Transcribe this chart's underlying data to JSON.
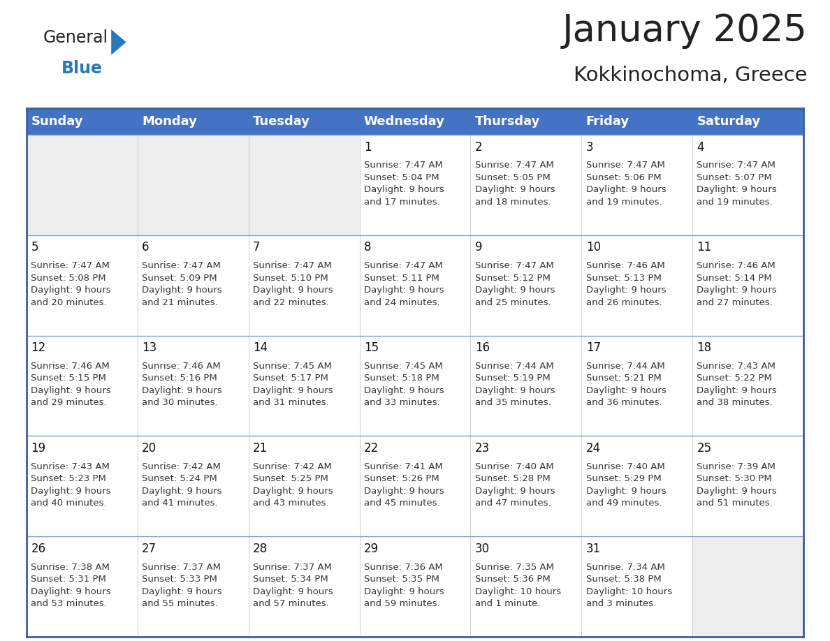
{
  "title": "January 2025",
  "subtitle": "Kokkinochoma, Greece",
  "header_bg": "#4472C4",
  "header_text_color": "#FFFFFF",
  "cell_bg_light": "#EEEEEE",
  "cell_bg_white": "#FFFFFF",
  "day_names": [
    "Sunday",
    "Monday",
    "Tuesday",
    "Wednesday",
    "Thursday",
    "Friday",
    "Saturday"
  ],
  "weeks": [
    [
      {
        "day": "",
        "info": ""
      },
      {
        "day": "",
        "info": ""
      },
      {
        "day": "",
        "info": ""
      },
      {
        "day": "1",
        "info": "Sunrise: 7:47 AM\nSunset: 5:04 PM\nDaylight: 9 hours\nand 17 minutes."
      },
      {
        "day": "2",
        "info": "Sunrise: 7:47 AM\nSunset: 5:05 PM\nDaylight: 9 hours\nand 18 minutes."
      },
      {
        "day": "3",
        "info": "Sunrise: 7:47 AM\nSunset: 5:06 PM\nDaylight: 9 hours\nand 19 minutes."
      },
      {
        "day": "4",
        "info": "Sunrise: 7:47 AM\nSunset: 5:07 PM\nDaylight: 9 hours\nand 19 minutes."
      }
    ],
    [
      {
        "day": "5",
        "info": "Sunrise: 7:47 AM\nSunset: 5:08 PM\nDaylight: 9 hours\nand 20 minutes."
      },
      {
        "day": "6",
        "info": "Sunrise: 7:47 AM\nSunset: 5:09 PM\nDaylight: 9 hours\nand 21 minutes."
      },
      {
        "day": "7",
        "info": "Sunrise: 7:47 AM\nSunset: 5:10 PM\nDaylight: 9 hours\nand 22 minutes."
      },
      {
        "day": "8",
        "info": "Sunrise: 7:47 AM\nSunset: 5:11 PM\nDaylight: 9 hours\nand 24 minutes."
      },
      {
        "day": "9",
        "info": "Sunrise: 7:47 AM\nSunset: 5:12 PM\nDaylight: 9 hours\nand 25 minutes."
      },
      {
        "day": "10",
        "info": "Sunrise: 7:46 AM\nSunset: 5:13 PM\nDaylight: 9 hours\nand 26 minutes."
      },
      {
        "day": "11",
        "info": "Sunrise: 7:46 AM\nSunset: 5:14 PM\nDaylight: 9 hours\nand 27 minutes."
      }
    ],
    [
      {
        "day": "12",
        "info": "Sunrise: 7:46 AM\nSunset: 5:15 PM\nDaylight: 9 hours\nand 29 minutes."
      },
      {
        "day": "13",
        "info": "Sunrise: 7:46 AM\nSunset: 5:16 PM\nDaylight: 9 hours\nand 30 minutes."
      },
      {
        "day": "14",
        "info": "Sunrise: 7:45 AM\nSunset: 5:17 PM\nDaylight: 9 hours\nand 31 minutes."
      },
      {
        "day": "15",
        "info": "Sunrise: 7:45 AM\nSunset: 5:18 PM\nDaylight: 9 hours\nand 33 minutes."
      },
      {
        "day": "16",
        "info": "Sunrise: 7:44 AM\nSunset: 5:19 PM\nDaylight: 9 hours\nand 35 minutes."
      },
      {
        "day": "17",
        "info": "Sunrise: 7:44 AM\nSunset: 5:21 PM\nDaylight: 9 hours\nand 36 minutes."
      },
      {
        "day": "18",
        "info": "Sunrise: 7:43 AM\nSunset: 5:22 PM\nDaylight: 9 hours\nand 38 minutes."
      }
    ],
    [
      {
        "day": "19",
        "info": "Sunrise: 7:43 AM\nSunset: 5:23 PM\nDaylight: 9 hours\nand 40 minutes."
      },
      {
        "day": "20",
        "info": "Sunrise: 7:42 AM\nSunset: 5:24 PM\nDaylight: 9 hours\nand 41 minutes."
      },
      {
        "day": "21",
        "info": "Sunrise: 7:42 AM\nSunset: 5:25 PM\nDaylight: 9 hours\nand 43 minutes."
      },
      {
        "day": "22",
        "info": "Sunrise: 7:41 AM\nSunset: 5:26 PM\nDaylight: 9 hours\nand 45 minutes."
      },
      {
        "day": "23",
        "info": "Sunrise: 7:40 AM\nSunset: 5:28 PM\nDaylight: 9 hours\nand 47 minutes."
      },
      {
        "day": "24",
        "info": "Sunrise: 7:40 AM\nSunset: 5:29 PM\nDaylight: 9 hours\nand 49 minutes."
      },
      {
        "day": "25",
        "info": "Sunrise: 7:39 AM\nSunset: 5:30 PM\nDaylight: 9 hours\nand 51 minutes."
      }
    ],
    [
      {
        "day": "26",
        "info": "Sunrise: 7:38 AM\nSunset: 5:31 PM\nDaylight: 9 hours\nand 53 minutes."
      },
      {
        "day": "27",
        "info": "Sunrise: 7:37 AM\nSunset: 5:33 PM\nDaylight: 9 hours\nand 55 minutes."
      },
      {
        "day": "28",
        "info": "Sunrise: 7:37 AM\nSunset: 5:34 PM\nDaylight: 9 hours\nand 57 minutes."
      },
      {
        "day": "29",
        "info": "Sunrise: 7:36 AM\nSunset: 5:35 PM\nDaylight: 9 hours\nand 59 minutes."
      },
      {
        "day": "30",
        "info": "Sunrise: 7:35 AM\nSunset: 5:36 PM\nDaylight: 10 hours\nand 1 minute."
      },
      {
        "day": "31",
        "info": "Sunrise: 7:34 AM\nSunset: 5:38 PM\nDaylight: 10 hours\nand 3 minutes."
      },
      {
        "day": "",
        "info": ""
      }
    ]
  ],
  "logo_general_color": "#222222",
  "logo_blue_color": "#2878C0",
  "logo_triangle_color": "#2878C0",
  "title_color": "#222222",
  "subtitle_color": "#222222",
  "title_fontsize": 38,
  "subtitle_fontsize": 21,
  "header_fontsize": 13,
  "day_num_fontsize": 12,
  "info_fontsize": 9.5,
  "border_color": "#3a5f9f",
  "separator_color": "#3a5f9f",
  "row_sep_color": "#7a9fd4"
}
